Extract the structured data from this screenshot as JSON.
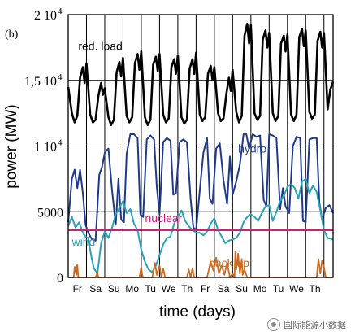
{
  "panel_label": "(b)",
  "watermark": {
    "text": "国际能源小数据",
    "icon": "wechat-logo-icon"
  },
  "colors": {
    "red_load": "#000000",
    "hydro": "#1f3a8a",
    "wind": "#2aa3b6",
    "nuclear": "#d81b72",
    "backup": "#cc6a1e",
    "grid": "#000000"
  },
  "chart_data": {
    "type": "line",
    "xlabel": "time (days)",
    "ylabel": "power (MW)",
    "ylim": [
      0,
      20000
    ],
    "xlim": [
      0,
      14.5
    ],
    "grid": true,
    "ytick_labels": [
      {
        "value": 0,
        "label": "0",
        "sup": ""
      },
      {
        "value": 5000,
        "label": "5000",
        "sup": ""
      },
      {
        "value": 10000,
        "label": "1 10",
        "sup": "4"
      },
      {
        "value": 15000,
        "label": "1,5 10",
        "sup": "4"
      },
      {
        "value": 20000,
        "label": "2 10",
        "sup": "4"
      }
    ],
    "categories": [
      "Fr",
      "Sa",
      "Su",
      "Mo",
      "Tu",
      "We",
      "Th",
      "Fr",
      "Sa",
      "Su",
      "Mo",
      "Tu",
      "We",
      "Th"
    ],
    "annotations": [
      {
        "text": "red. load",
        "series": "red_load",
        "x": 0.55,
        "y": 17300
      },
      {
        "text": "hydro",
        "series": "hydro",
        "x": 9.3,
        "y": 9500
      },
      {
        "text": "nuclear",
        "series": "nuclear",
        "x": 4.2,
        "y": 4200
      },
      {
        "text": "wind",
        "series": "wind",
        "x": 0.2,
        "y": 2400
      },
      {
        "text": "back-up",
        "series": "backup",
        "x": 7.7,
        "y": 800
      }
    ],
    "series": [
      {
        "key": "red_load",
        "x": [
          0,
          0.2,
          0.35,
          0.5,
          0.65,
          0.8,
          0.9,
          1,
          1.2,
          1.35,
          1.5,
          1.65,
          1.8,
          1.9,
          2,
          2.2,
          2.35,
          2.5,
          2.65,
          2.8,
          2.9,
          3,
          3.2,
          3.35,
          3.5,
          3.65,
          3.8,
          3.9,
          4,
          4.2,
          4.35,
          4.5,
          4.65,
          4.8,
          4.9,
          5,
          5.2,
          5.35,
          5.5,
          5.65,
          5.8,
          5.9,
          6,
          6.2,
          6.35,
          6.5,
          6.65,
          6.8,
          6.9,
          7,
          7.2,
          7.35,
          7.5,
          7.65,
          7.8,
          7.9,
          8,
          8.2,
          8.35,
          8.5,
          8.65,
          8.8,
          8.9,
          9,
          9.2,
          9.35,
          9.5,
          9.65,
          9.8,
          9.9,
          10,
          10.2,
          10.35,
          10.5,
          10.65,
          10.8,
          10.9,
          11,
          11.2,
          11.35,
          11.5,
          11.65,
          11.8,
          11.9,
          12,
          12.2,
          12.35,
          12.5,
          12.65,
          12.8,
          12.9,
          13,
          13.2,
          13.35,
          13.5,
          13.65,
          13.8,
          13.9,
          14,
          14.2,
          14.35,
          14.5
        ],
        "y": [
          14500,
          12500,
          11800,
          12300,
          15200,
          16000,
          14800,
          16300,
          12400,
          11800,
          12000,
          13800,
          14800,
          13900,
          14400,
          12200,
          11600,
          12000,
          15600,
          16400,
          15300,
          16700,
          12300,
          11800,
          12200,
          16300,
          17000,
          15800,
          17200,
          12200,
          11600,
          12000,
          16200,
          16800,
          15700,
          17000,
          12400,
          11800,
          12100,
          16000,
          16600,
          15500,
          16900,
          12200,
          11700,
          12000,
          15900,
          16600,
          15500,
          17100,
          12400,
          11900,
          12200,
          15500,
          16100,
          15000,
          16000,
          12500,
          11900,
          12100,
          13900,
          15200,
          14200,
          15800,
          12600,
          11800,
          12300,
          18400,
          19300,
          17800,
          19200,
          12500,
          12000,
          12300,
          18100,
          18800,
          17500,
          18600,
          12500,
          11900,
          12300,
          17800,
          18400,
          17200,
          18500,
          12400,
          11900,
          12400,
          18300,
          18900,
          17600,
          18800,
          12600,
          12100,
          12400,
          18000,
          18700,
          17500,
          18600,
          12800,
          14300,
          14900
        ]
      },
      {
        "key": "hydro",
        "x": [
          0,
          0.2,
          0.35,
          0.5,
          0.65,
          0.8,
          0.95,
          1.1,
          1.3,
          1.5,
          1.7,
          1.85,
          2,
          2.2,
          2.4,
          2.6,
          2.75,
          2.9,
          3.05,
          3.2,
          3.4,
          3.6,
          3.8,
          3.95,
          4.1,
          4.3,
          4.5,
          4.7,
          4.85,
          5,
          5.2,
          5.4,
          5.6,
          5.75,
          5.9,
          6.1,
          6.3,
          6.5,
          6.7,
          6.85,
          7,
          7.2,
          7.4,
          7.6,
          7.75,
          7.9,
          8.1,
          8.3,
          8.5,
          8.7,
          8.85,
          9,
          9.2,
          9.4,
          9.6,
          9.75,
          9.9,
          10.1,
          10.3,
          10.5,
          10.7,
          10.85,
          11,
          11.2,
          11.4,
          11.6,
          11.75,
          11.9,
          12.1,
          12.3,
          12.5,
          12.7,
          12.85,
          13,
          13.2,
          13.4,
          13.6,
          13.75,
          13.9,
          14.1,
          14.3,
          14.5
        ],
        "y": [
          4200,
          7500,
          8200,
          6800,
          8200,
          6400,
          4000,
          3400,
          2900,
          2800,
          7800,
          8400,
          9500,
          9800,
          6600,
          4000,
          7500,
          4400,
          4200,
          9400,
          10900,
          10900,
          10600,
          4800,
          4600,
          10500,
          10800,
          10500,
          6900,
          4800,
          10300,
          10600,
          10400,
          6300,
          6400,
          10300,
          10500,
          10300,
          6000,
          3800,
          3600,
          6600,
          9500,
          10600,
          6000,
          5600,
          9800,
          10200,
          7400,
          5600,
          9200,
          6300,
          7300,
          8600,
          10900,
          10900,
          9800,
          10900,
          10700,
          10800,
          5900,
          5400,
          10900,
          10800,
          10600,
          5200,
          6800,
          5400,
          4900,
          10000,
          10700,
          10600,
          4300,
          4200,
          10500,
          10600,
          10600,
          5700,
          4400,
          5300,
          5500,
          4900
        ]
      },
      {
        "key": "wind",
        "x": [
          0,
          0.2,
          0.4,
          0.6,
          0.8,
          0.95,
          1.1,
          1.25,
          1.4,
          1.6,
          1.8,
          2,
          2.2,
          2.4,
          2.6,
          2.8,
          3,
          3.2,
          3.4,
          3.6,
          3.8,
          4,
          4.2,
          4.4,
          4.6,
          4.8,
          5,
          5.2,
          5.4,
          5.6,
          5.8,
          6,
          6.2,
          6.4,
          6.6,
          6.8,
          7,
          7.2,
          7.4,
          7.6,
          7.8,
          8,
          8.2,
          8.4,
          8.6,
          8.8,
          9,
          9.2,
          9.4,
          9.6,
          9.8,
          10,
          10.2,
          10.4,
          10.6,
          10.8,
          11,
          11.2,
          11.4,
          11.6,
          11.8,
          12,
          12.2,
          12.4,
          12.6,
          12.8,
          13,
          13.2,
          13.4,
          13.6,
          13.8,
          14,
          14.2,
          14.5
        ],
        "y": [
          3900,
          4600,
          3800,
          4200,
          3400,
          3100,
          3000,
          1700,
          700,
          300,
          2600,
          3500,
          3000,
          3800,
          4800,
          5300,
          5800,
          4900,
          5200,
          4100,
          3600,
          2100,
          1200,
          600,
          400,
          900,
          1700,
          2500,
          3000,
          3100,
          4100,
          4600,
          5100,
          4300,
          3900,
          3600,
          3400,
          3400,
          3200,
          3500,
          4100,
          4500,
          3600,
          3100,
          2600,
          2800,
          2900,
          3000,
          3400,
          4200,
          4600,
          4800,
          4600,
          4300,
          4900,
          5400,
          5500,
          4300,
          5000,
          5800,
          6200,
          6900,
          7100,
          6800,
          6000,
          7300,
          7500,
          6400,
          7000,
          6500,
          5100,
          3600,
          3000,
          2900
        ]
      },
      {
        "key": "nuclear",
        "x": [
          0,
          14.5
        ],
        "y": [
          3600,
          3600
        ]
      },
      {
        "key": "backup",
        "x": [
          0,
          0.3,
          0.35,
          0.45,
          0.5,
          0.55,
          1.5,
          1.6,
          1.65,
          1.7,
          3.9,
          4.0,
          4.05,
          4.1,
          4.6,
          4.75,
          4.85,
          5.0,
          5.1,
          5.2,
          5.3,
          5.5,
          6.5,
          6.6,
          6.7,
          6.8,
          6.9,
          7.0,
          7.6,
          7.8,
          7.95,
          8.1,
          8.25,
          8.4,
          8.55,
          8.7,
          8.85,
          9.0,
          9.1,
          9.15,
          9.2,
          9.3,
          9.4,
          9.5,
          9.55,
          9.65,
          9.8,
          13.6,
          13.7,
          13.8,
          13.9,
          14.0,
          14.1,
          14.5
        ],
        "y": [
          0,
          0,
          800,
          200,
          1000,
          0,
          0,
          400,
          0,
          0,
          0,
          800,
          200,
          0,
          0,
          1100,
          200,
          900,
          0,
          700,
          0,
          0,
          0,
          600,
          0,
          700,
          0,
          0,
          0,
          1200,
          500,
          1500,
          300,
          900,
          200,
          1100,
          0,
          300,
          0,
          2000,
          600,
          1800,
          300,
          1400,
          200,
          600,
          0,
          0,
          1400,
          300,
          1300,
          800,
          0,
          0
        ]
      }
    ]
  }
}
